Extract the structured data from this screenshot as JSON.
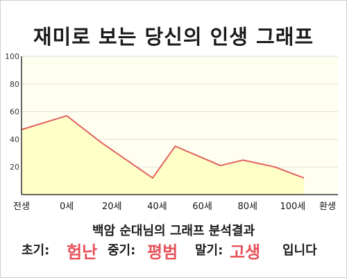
{
  "title": "재미로 보는 당신의 인생 그래프",
  "subtitle": "백암 순대님의 그래프 분석결과",
  "summary": {
    "early_label": "초기:",
    "early_value": "험난",
    "middle_label": "중기:",
    "middle_value": "평범",
    "late_label": "말기:",
    "late_value": "고생",
    "ending": "입니다"
  },
  "colors": {
    "line": "#e06060",
    "fill": "#ffffc8",
    "plot_background": "#fffff0",
    "grid": "#dddddd",
    "highlight": "#e8525a"
  },
  "chart_data": {
    "type": "area",
    "title": "재미로 보는 당신의 인생 그래프",
    "x": [
      -20,
      0,
      15,
      30,
      38,
      48,
      58,
      68,
      78,
      92,
      105
    ],
    "values": [
      47,
      57,
      38,
      21,
      12,
      35,
      28,
      21,
      25,
      20,
      12
    ],
    "x_ticks": [
      {
        "value": -20,
        "label": "전생"
      },
      {
        "value": 0,
        "label": "0세"
      },
      {
        "value": 20,
        "label": "20세"
      },
      {
        "value": 40,
        "label": "40세"
      },
      {
        "value": 60,
        "label": "60세"
      },
      {
        "value": 80,
        "label": "80세"
      },
      {
        "value": 100,
        "label": "100세"
      },
      {
        "value": 120,
        "label": "환생"
      }
    ],
    "y_ticks": [
      20,
      40,
      60,
      80,
      100
    ],
    "xlim": [
      -20,
      120
    ],
    "ylim": [
      0,
      100
    ],
    "grid": true,
    "legend": "none"
  }
}
